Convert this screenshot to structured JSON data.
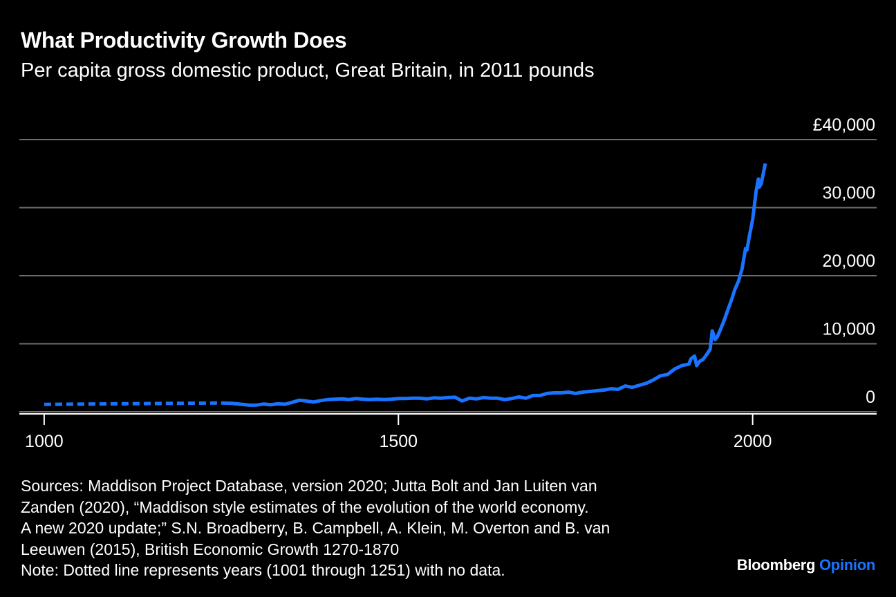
{
  "header": {
    "title": "What Productivity Growth Does",
    "subtitle": "Per capita gross domestic product, Great Britain, in 2011 pounds"
  },
  "footer": {
    "sources_lines": [
      "Sources: Maddison Project Database, version 2020; Jutta Bolt and Jan Luiten van",
      "Zanden (2020), “Maddison style estimates of the evolution of the world economy.",
      "A new 2020 update;” S.N. Broadberry, B. Campbell, A. Klein, M. Overton and B. van",
      "Leeuwen (2015), British Economic Growth 1270-1870"
    ],
    "note": "Note: Dotted line represents years (1001 through 1251) with no data.",
    "brand_name": "Bloomberg",
    "brand_accent": "Opinion"
  },
  "colors": {
    "background": "#000000",
    "line": "#1a73ff",
    "grid": "#6e6e6e",
    "text": "#ffffff"
  },
  "chart_data": {
    "type": "line",
    "title": "What Productivity Growth Does",
    "subtitle": "Per capita gross domestic product, Great Britain, in 2011 pounds",
    "xlabel": "",
    "ylabel": "",
    "xlim": [
      965,
      2175
    ],
    "ylim": [
      -300,
      40000
    ],
    "x_ticks": [
      1000,
      1500,
      2000
    ],
    "x_tick_labels": [
      "1000",
      "1500",
      "2000"
    ],
    "y_ticks": [
      0,
      10000,
      20000,
      30000,
      40000
    ],
    "y_tick_labels": [
      "0",
      "10,000",
      "20,000",
      "30,000",
      "£40,000"
    ],
    "y_axis_side": "right",
    "grid": true,
    "series": [
      {
        "style": "dotted",
        "points": [
          [
            1000,
            1100
          ],
          [
            1251,
            1300
          ]
        ]
      },
      {
        "style": "solid",
        "points": [
          [
            1251,
            1300
          ],
          [
            1265,
            1250
          ],
          [
            1280,
            1100
          ],
          [
            1290,
            980
          ],
          [
            1300,
            1000
          ],
          [
            1310,
            1150
          ],
          [
            1320,
            1050
          ],
          [
            1330,
            1180
          ],
          [
            1340,
            1120
          ],
          [
            1350,
            1400
          ],
          [
            1360,
            1700
          ],
          [
            1370,
            1600
          ],
          [
            1380,
            1450
          ],
          [
            1390,
            1650
          ],
          [
            1400,
            1800
          ],
          [
            1410,
            1850
          ],
          [
            1420,
            1900
          ],
          [
            1430,
            1800
          ],
          [
            1440,
            1950
          ],
          [
            1450,
            1850
          ],
          [
            1460,
            1800
          ],
          [
            1470,
            1850
          ],
          [
            1480,
            1800
          ],
          [
            1490,
            1850
          ],
          [
            1500,
            1950
          ],
          [
            1510,
            1950
          ],
          [
            1520,
            2000
          ],
          [
            1530,
            2000
          ],
          [
            1540,
            1900
          ],
          [
            1550,
            2050
          ],
          [
            1560,
            2000
          ],
          [
            1570,
            2100
          ],
          [
            1580,
            2150
          ],
          [
            1590,
            1600
          ],
          [
            1600,
            2000
          ],
          [
            1610,
            1900
          ],
          [
            1620,
            2100
          ],
          [
            1630,
            2000
          ],
          [
            1640,
            2000
          ],
          [
            1650,
            1800
          ],
          [
            1660,
            1950
          ],
          [
            1670,
            2200
          ],
          [
            1680,
            2000
          ],
          [
            1690,
            2400
          ],
          [
            1700,
            2400
          ],
          [
            1710,
            2700
          ],
          [
            1720,
            2800
          ],
          [
            1730,
            2800
          ],
          [
            1740,
            2900
          ],
          [
            1750,
            2700
          ],
          [
            1760,
            2900
          ],
          [
            1770,
            3000
          ],
          [
            1780,
            3100
          ],
          [
            1790,
            3200
          ],
          [
            1800,
            3400
          ],
          [
            1810,
            3300
          ],
          [
            1820,
            3800
          ],
          [
            1830,
            3600
          ],
          [
            1840,
            3900
          ],
          [
            1850,
            4200
          ],
          [
            1860,
            4700
          ],
          [
            1870,
            5300
          ],
          [
            1880,
            5500
          ],
          [
            1890,
            6300
          ],
          [
            1900,
            6800
          ],
          [
            1910,
            7000
          ],
          [
            1913,
            7800
          ],
          [
            1918,
            8200
          ],
          [
            1921,
            6800
          ],
          [
            1925,
            7400
          ],
          [
            1930,
            7700
          ],
          [
            1935,
            8400
          ],
          [
            1940,
            9200
          ],
          [
            1943,
            11900
          ],
          [
            1945,
            11300
          ],
          [
            1947,
            10600
          ],
          [
            1950,
            11000
          ],
          [
            1955,
            12200
          ],
          [
            1960,
            13500
          ],
          [
            1965,
            15000
          ],
          [
            1970,
            16400
          ],
          [
            1975,
            18000
          ],
          [
            1980,
            19200
          ],
          [
            1985,
            21000
          ],
          [
            1990,
            24000
          ],
          [
            1992,
            23800
          ],
          [
            1995,
            25600
          ],
          [
            2000,
            28300
          ],
          [
            2005,
            32500
          ],
          [
            2008,
            34200
          ],
          [
            2009,
            33000
          ],
          [
            2012,
            33500
          ],
          [
            2015,
            35000
          ],
          [
            2018,
            36500
          ]
        ]
      }
    ]
  }
}
